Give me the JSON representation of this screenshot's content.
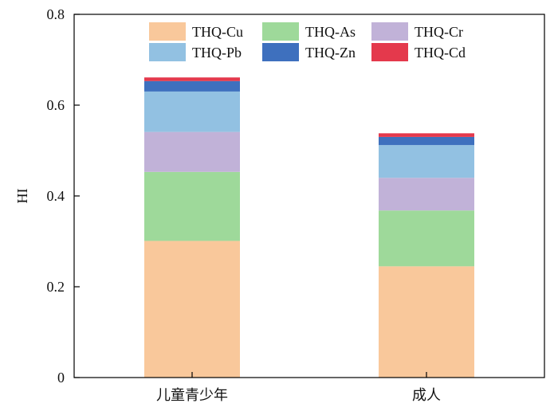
{
  "chart_data": {
    "type": "bar",
    "stacked": true,
    "categories": [
      "儿童青少年",
      "成人"
    ],
    "series": [
      {
        "name": "THQ-Cu",
        "color": "#F9C89B",
        "values": [
          0.301,
          0.245
        ]
      },
      {
        "name": "THQ-As",
        "color": "#9ED99A",
        "values": [
          0.152,
          0.123
        ]
      },
      {
        "name": "THQ-Cr",
        "color": "#C1B2D8",
        "values": [
          0.088,
          0.072
        ]
      },
      {
        "name": "THQ-Pb",
        "color": "#92C1E2",
        "values": [
          0.089,
          0.072
        ]
      },
      {
        "name": "THQ-Zn",
        "color": "#3E70BE",
        "values": [
          0.023,
          0.018
        ]
      },
      {
        "name": "THQ-Cd",
        "color": "#E4394C",
        "values": [
          0.008,
          0.008
        ]
      }
    ],
    "xlabel": "",
    "ylabel": "HI",
    "ylim": [
      0,
      0.8
    ],
    "yticks": [
      "0",
      "0.2",
      "0.4",
      "0.6",
      "0.8"
    ],
    "ytick_values": [
      0,
      0.2,
      0.4,
      0.6,
      0.8
    ],
    "legend_position": "top",
    "grid": false
  }
}
